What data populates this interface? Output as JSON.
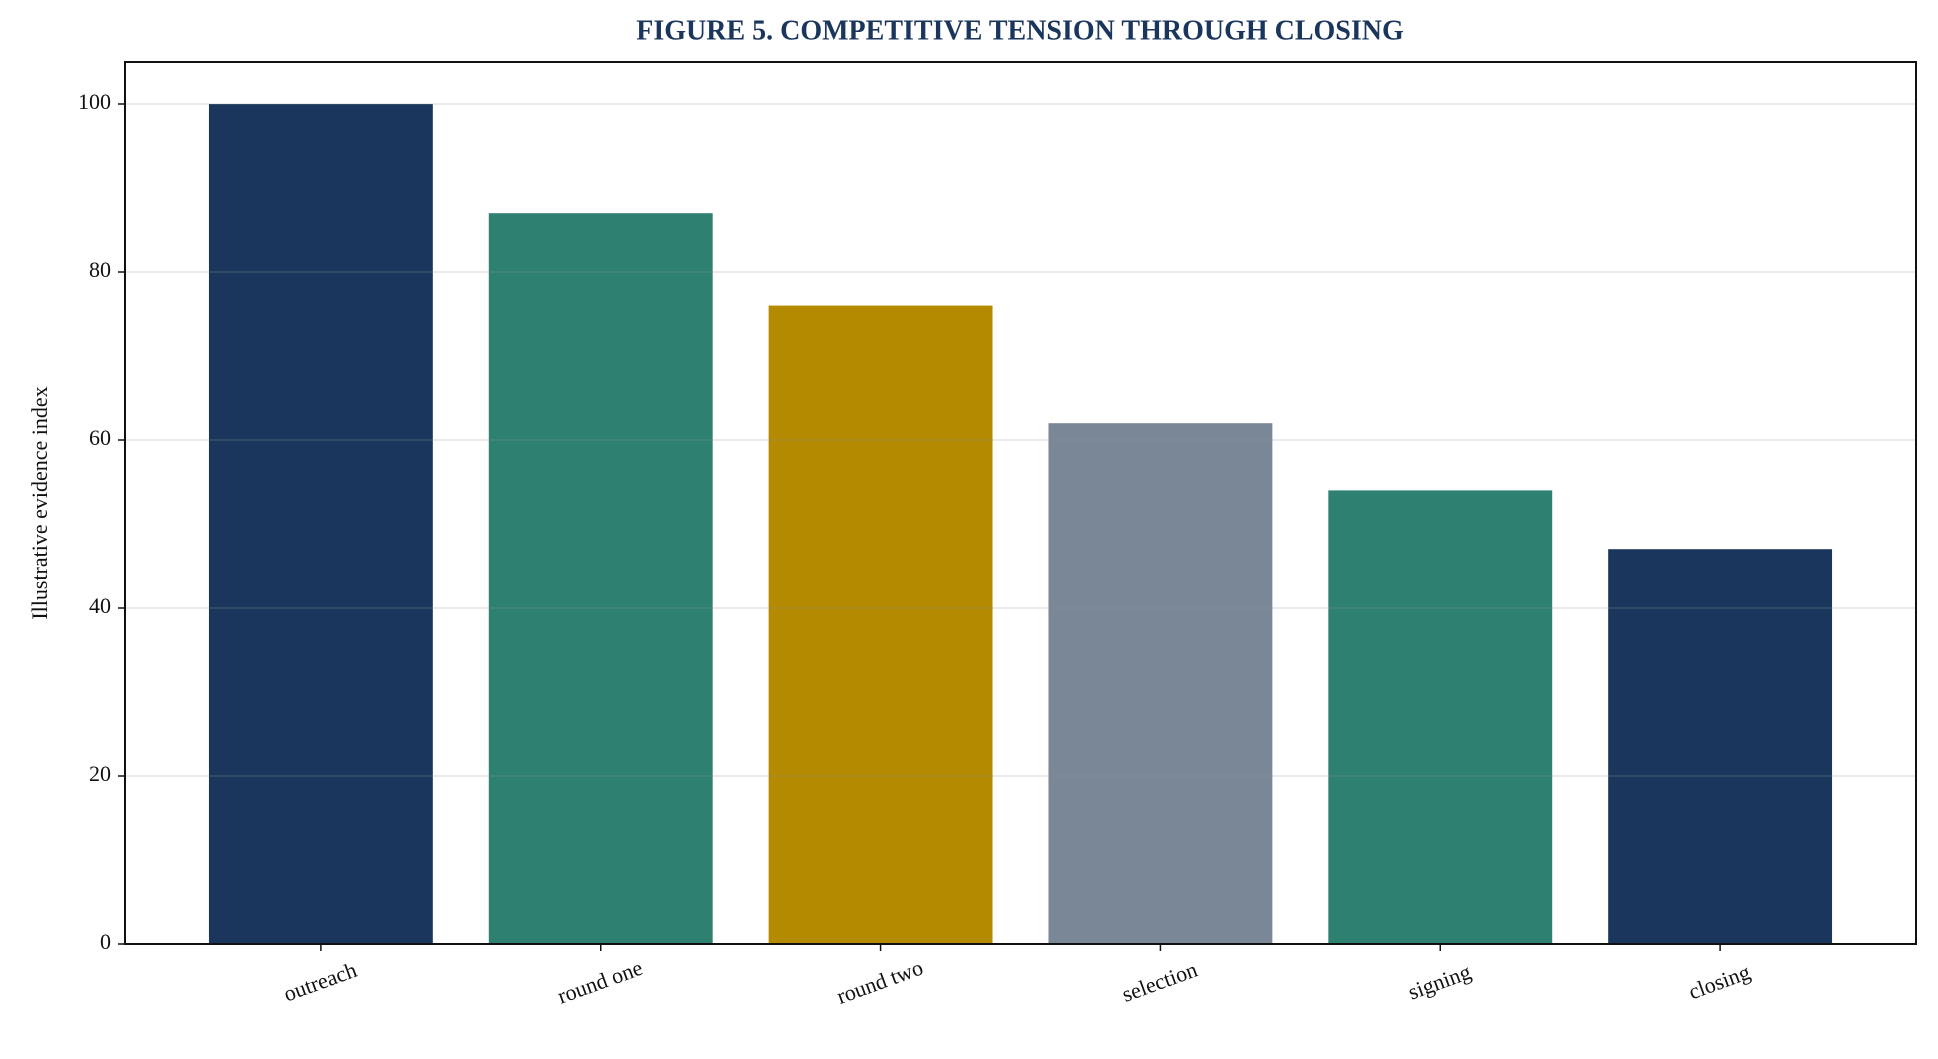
{
  "chart_data": {
    "type": "bar",
    "title": "FIGURE 5. COMPETITIVE TENSION THROUGH CLOSING",
    "y_label": "Illustrative evidence index",
    "categories": [
      "outreach",
      "round one",
      "round two",
      "selection",
      "signing",
      "closing"
    ],
    "values": [
      100,
      87,
      76,
      62,
      54,
      47
    ],
    "colors": [
      "#1a365d",
      "#2e8070",
      "#b38a00",
      "#7a8797",
      "#2e8070",
      "#1a365d"
    ],
    "ylim": [
      0,
      105
    ],
    "yticks": [
      0,
      20,
      40,
      60,
      80,
      100
    ],
    "grid": true
  }
}
